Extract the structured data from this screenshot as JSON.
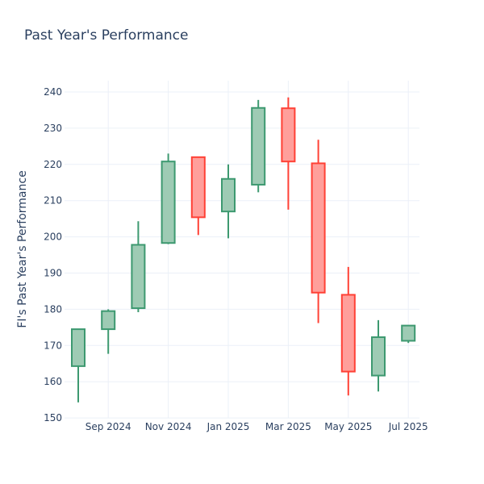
{
  "chart_data": {
    "type": "candlestick",
    "title": "Past Year's Performance",
    "xlabel": "",
    "ylabel": "FI's Past Year's Performance",
    "ylim": [
      150,
      243
    ],
    "yticks": [
      150,
      160,
      170,
      180,
      190,
      200,
      210,
      220,
      230,
      240
    ],
    "xticks": [
      {
        "month": 1,
        "label": "Sep 2024"
      },
      {
        "month": 3,
        "label": "Nov 2024"
      },
      {
        "month": 5,
        "label": "Jan 2025"
      },
      {
        "month": 7,
        "label": "Mar 2025"
      },
      {
        "month": 9,
        "label": "May 2025"
      },
      {
        "month": 11,
        "label": "Jul 2025"
      }
    ],
    "grid": true,
    "colors": {
      "increasing": "#3d9970",
      "increasing_fill": "#9ecbb4",
      "decreasing": "#ff4136",
      "decreasing_fill": "#ff9f9b"
    },
    "candles": [
      {
        "date": "Aug 2024",
        "open": 164.3,
        "high": 174.6,
        "low": 154.3,
        "close": 174.5
      },
      {
        "date": "Sep 2024",
        "open": 174.5,
        "high": 180.0,
        "low": 167.7,
        "close": 179.5
      },
      {
        "date": "Oct 2024",
        "open": 180.3,
        "high": 204.3,
        "low": 179.2,
        "close": 197.8
      },
      {
        "date": "Nov 2024",
        "open": 198.3,
        "high": 223.0,
        "low": 198.0,
        "close": 220.8
      },
      {
        "date": "Dec 2024",
        "open": 222.0,
        "high": 222.0,
        "low": 200.5,
        "close": 205.4
      },
      {
        "date": "Jan 2025",
        "open": 207.0,
        "high": 220.0,
        "low": 199.6,
        "close": 216.0
      },
      {
        "date": "Feb 2025",
        "open": 214.4,
        "high": 237.8,
        "low": 212.3,
        "close": 235.6
      },
      {
        "date": "Mar 2025",
        "open": 235.5,
        "high": 238.5,
        "low": 207.5,
        "close": 220.8
      },
      {
        "date": "Apr 2025",
        "open": 220.3,
        "high": 226.8,
        "low": 176.2,
        "close": 184.6
      },
      {
        "date": "May 2025",
        "open": 184.0,
        "high": 191.7,
        "low": 156.2,
        "close": 162.8
      },
      {
        "date": "Jun 2025",
        "open": 161.7,
        "high": 177.0,
        "low": 157.3,
        "close": 172.3
      },
      {
        "date": "Jul 2025",
        "open": 171.3,
        "high": 175.5,
        "low": 170.7,
        "close": 175.5
      }
    ]
  }
}
